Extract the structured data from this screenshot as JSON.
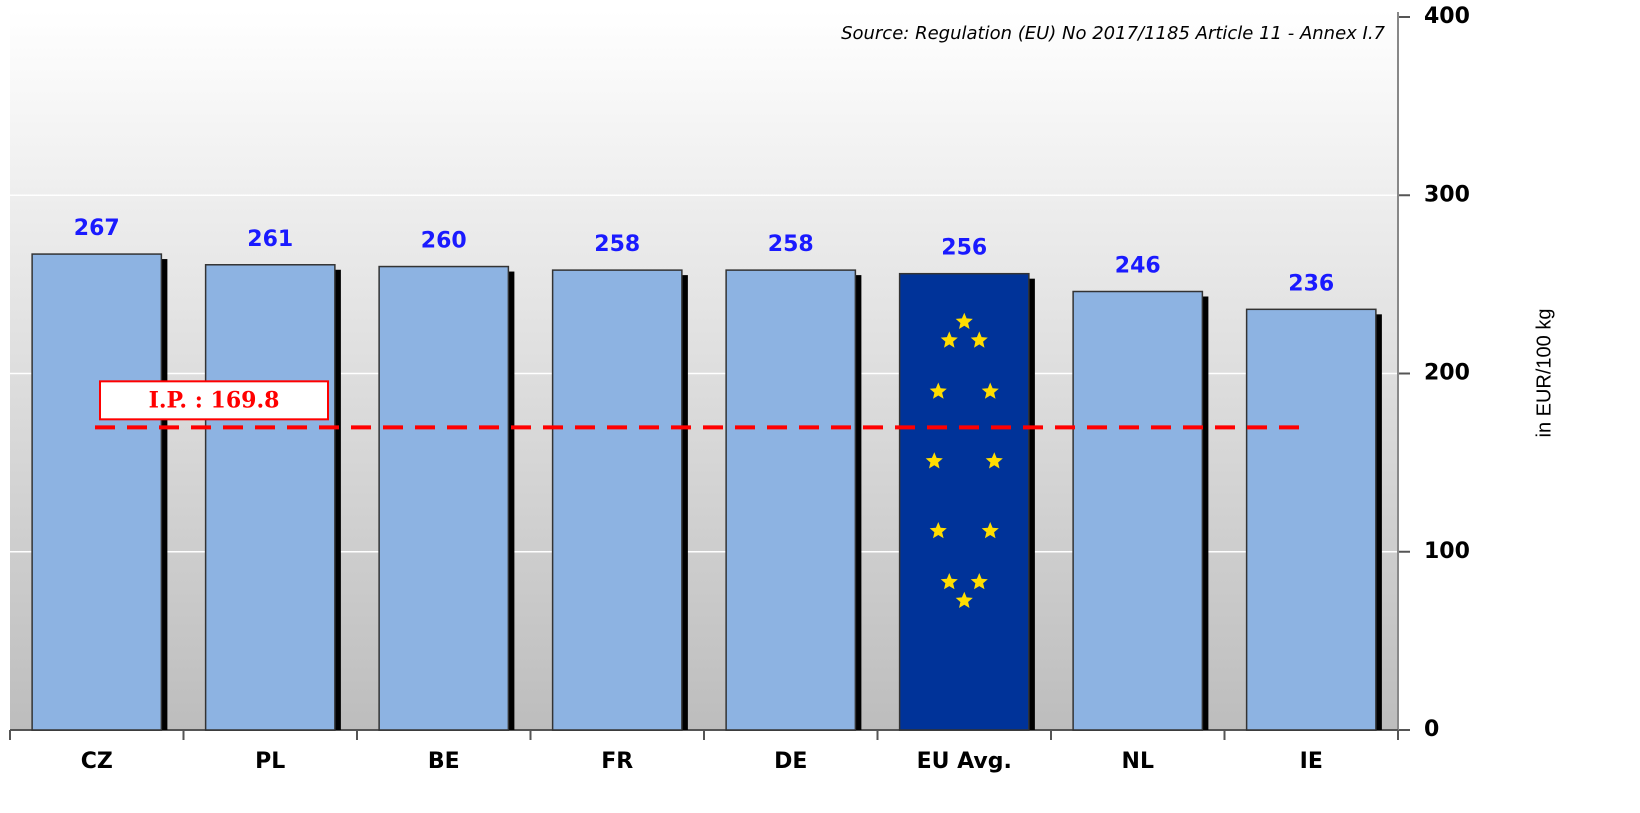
{
  "chart_data": {
    "type": "bar",
    "annotation": "Source: Regulation (EU) No 2017/1185 Article 11 - Annex I.7",
    "y_label": "in EUR/100 kg",
    "categories": [
      "CZ",
      "PL",
      "BE",
      "FR",
      "DE",
      "EU Avg.",
      "NL",
      "IE"
    ],
    "values": [
      267,
      261,
      260,
      258,
      258,
      256,
      246,
      236
    ],
    "colors": [
      "#8db3e2",
      "#8db3e2",
      "#8db3e2",
      "#8db3e2",
      "#8db3e2",
      "#003399",
      "#8db3e2",
      "#8db3e2"
    ],
    "ylim": [
      0,
      400
    ],
    "yticks": [
      0,
      100,
      200,
      300,
      400
    ],
    "grid": true,
    "reference_line": {
      "value": 169.8,
      "label": "I.P. : 169.8",
      "color": "#ff0000"
    }
  }
}
